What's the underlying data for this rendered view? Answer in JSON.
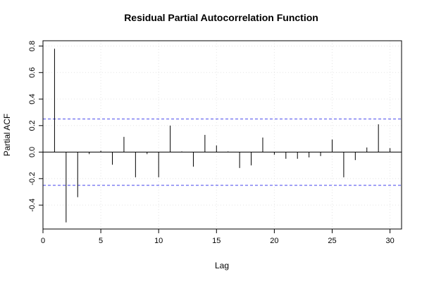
{
  "chart_data": {
    "type": "bar",
    "title": "Residual Partial Autocorrelation Function",
    "xlabel": "Lag",
    "ylabel": "Partial ACF",
    "xlim": [
      0,
      31
    ],
    "ylim": [
      -0.58,
      0.84
    ],
    "xticks": [
      0,
      5,
      10,
      15,
      20,
      25,
      30
    ],
    "yticks": [
      -0.4,
      -0.2,
      0.0,
      0.2,
      0.4,
      0.6,
      0.8
    ],
    "grid": true,
    "confidence_band": [
      -0.25,
      0.25
    ],
    "confidence_color": "#6a6af0",
    "lags": [
      1,
      2,
      3,
      4,
      5,
      6,
      7,
      8,
      9,
      10,
      11,
      12,
      13,
      14,
      15,
      16,
      17,
      18,
      19,
      20,
      21,
      22,
      23,
      24,
      25,
      26,
      27,
      28,
      29,
      30
    ],
    "values": [
      0.78,
      -0.53,
      -0.34,
      -0.015,
      0.01,
      -0.095,
      0.115,
      -0.19,
      -0.015,
      -0.19,
      0.2,
      0.005,
      -0.11,
      0.13,
      0.05,
      0.005,
      -0.12,
      -0.1,
      0.11,
      -0.02,
      -0.05,
      -0.05,
      -0.04,
      -0.03,
      0.095,
      -0.19,
      -0.06,
      0.035,
      0.21,
      0.03
    ]
  }
}
